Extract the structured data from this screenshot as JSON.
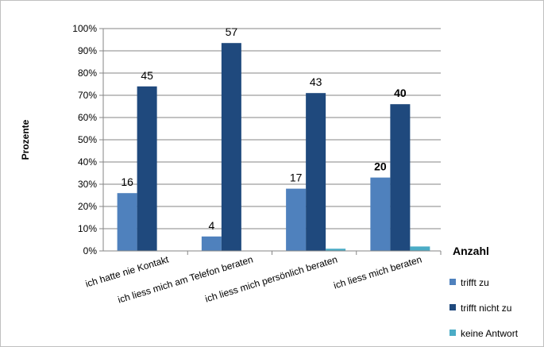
{
  "chart_data": {
    "type": "bar",
    "ylabel": "Prozente",
    "annotation": "Anzahl",
    "ylim": [
      0,
      100
    ],
    "y_ticks": [
      "0%",
      "10%",
      "20%",
      "30%",
      "40%",
      "50%",
      "60%",
      "70%",
      "80%",
      "90%",
      "100%"
    ],
    "grid": true,
    "legend_position": "bottom-right",
    "categories": [
      "ich hatte nie Kontakt",
      "ich liess mich am Telefon beraten",
      "ich liess mich persönlich beraten",
      "ich liess mich beraten"
    ],
    "series": [
      {
        "name": "trifft zu",
        "color": "#4f81bd",
        "values": [
          26,
          6.5,
          28,
          33
        ],
        "labels": [
          "16",
          "4",
          "17",
          "20"
        ],
        "bold_labels": [
          false,
          false,
          false,
          true
        ]
      },
      {
        "name": "trifft nicht zu",
        "color": "#1f497d",
        "values": [
          74,
          93.5,
          71,
          66
        ],
        "labels": [
          "45",
          "57",
          "43",
          "40"
        ],
        "bold_labels": [
          false,
          false,
          false,
          true
        ]
      },
      {
        "name": "keine Antwort",
        "color": "#4bacc6",
        "values": [
          0,
          0,
          1,
          2
        ],
        "labels": [
          "",
          "",
          "",
          ""
        ],
        "bold_labels": [
          false,
          false,
          false,
          false
        ]
      }
    ]
  }
}
